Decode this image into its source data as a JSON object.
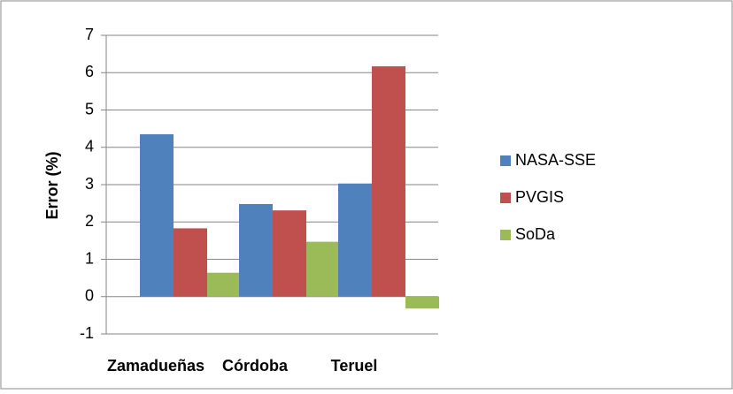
{
  "chart_data": {
    "type": "bar",
    "y_label": "Error (%)",
    "categories": [
      "Zamadueñas",
      "Córdoba",
      "Teruel"
    ],
    "series": [
      {
        "name": "NASA-SSE",
        "color": "#4f81bd",
        "values": [
          4.35,
          2.48,
          3.03
        ]
      },
      {
        "name": "PVGIS",
        "color": "#c0504d",
        "values": [
          1.83,
          2.31,
          6.17
        ]
      },
      {
        "name": "SoDa",
        "color": "#9bbb59",
        "values": [
          0.64,
          1.47,
          -0.32
        ]
      }
    ],
    "ylim": [
      -1,
      7
    ],
    "yticks": [
      -1,
      0,
      1,
      2,
      3,
      4,
      5,
      6,
      7
    ],
    "grid": true,
    "legend": "right"
  }
}
